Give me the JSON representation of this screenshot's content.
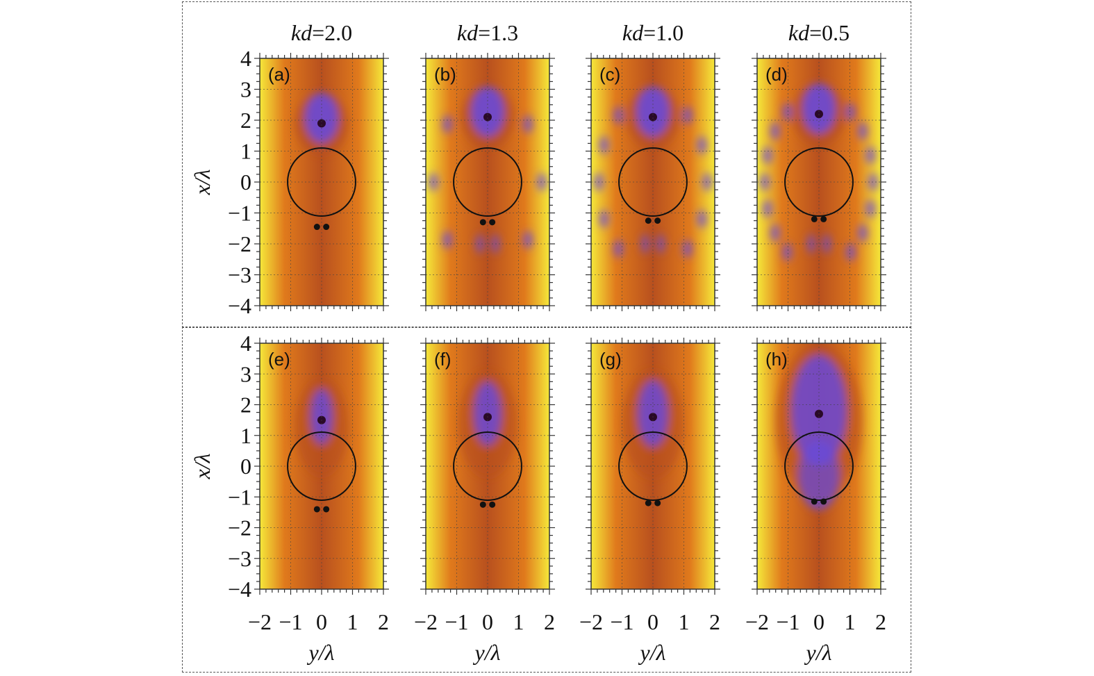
{
  "figure": {
    "column_titles": [
      {
        "italic": "kd",
        "rest": "=2.0"
      },
      {
        "italic": "kd",
        "rest": "=1.3"
      },
      {
        "italic": "kd",
        "rest": "=1.0"
      },
      {
        "italic": "kd",
        "rest": "=0.5"
      }
    ],
    "ylabel": "x/λ",
    "xlabel": "y/λ",
    "y_ticks": [
      "4",
      "3",
      "2",
      "1",
      "0",
      "−1",
      "−2",
      "−3",
      "−4"
    ],
    "x_ticks": [
      "−2",
      "−1",
      "0",
      "1",
      "2"
    ]
  },
  "colors": {
    "low": "#2a0a28",
    "mid_low": "#6a4ad8",
    "mid": "#b8501e",
    "mid_high": "#e07a1c",
    "high": "#f5e83a",
    "circle": "#111111",
    "grid": "#444444"
  },
  "chart_data": {
    "type": "heatmap",
    "x_axis": {
      "label": "y/λ",
      "range": [
        -2,
        2
      ],
      "ticks": [
        -2,
        -1,
        0,
        1,
        2
      ]
    },
    "y_axis": {
      "label": "x/λ",
      "range": [
        -4,
        4
      ],
      "ticks": [
        4,
        3,
        2,
        1,
        0,
        -1,
        -2,
        -3,
        -4
      ]
    },
    "grid": true,
    "scatterer": {
      "shape": "circle",
      "center": [
        0,
        0
      ],
      "radius": 1.1
    },
    "panels": [
      {
        "label": "(a)",
        "row": 0,
        "col": 0,
        "kd": 2.0,
        "sources": [
          [
            -0.15,
            -1.45
          ],
          [
            0.15,
            -1.45
          ]
        ],
        "focus": [
          0,
          1.9
        ],
        "pattern": "top"
      },
      {
        "label": "(b)",
        "row": 0,
        "col": 1,
        "kd": 1.3,
        "sources": [
          [
            -0.15,
            -1.3
          ],
          [
            0.15,
            -1.3
          ]
        ],
        "focus": [
          0,
          2.1
        ],
        "pattern": "top"
      },
      {
        "label": "(c)",
        "row": 0,
        "col": 2,
        "kd": 1.0,
        "sources": [
          [
            -0.15,
            -1.25
          ],
          [
            0.15,
            -1.25
          ]
        ],
        "focus": [
          0,
          2.1
        ],
        "pattern": "top"
      },
      {
        "label": "(d)",
        "row": 0,
        "col": 3,
        "kd": 0.5,
        "sources": [
          [
            -0.15,
            -1.2
          ],
          [
            0.15,
            -1.2
          ]
        ],
        "focus": [
          0,
          2.2
        ],
        "pattern": "top"
      },
      {
        "label": "(e)",
        "row": 1,
        "col": 0,
        "kd": 2.0,
        "sources": [
          [
            -0.15,
            -1.4
          ],
          [
            0.15,
            -1.4
          ]
        ],
        "focus": [
          0,
          1.5
        ],
        "pattern": "bottom"
      },
      {
        "label": "(f)",
        "row": 1,
        "col": 1,
        "kd": 1.3,
        "sources": [
          [
            -0.15,
            -1.25
          ],
          [
            0.15,
            -1.25
          ]
        ],
        "focus": [
          0,
          1.6
        ],
        "pattern": "bottom"
      },
      {
        "label": "(g)",
        "row": 1,
        "col": 2,
        "kd": 1.0,
        "sources": [
          [
            -0.15,
            -1.2
          ],
          [
            0.15,
            -1.2
          ]
        ],
        "focus": [
          0,
          1.6
        ],
        "pattern": "bottom"
      },
      {
        "label": "(h)",
        "row": 1,
        "col": 3,
        "kd": 0.5,
        "sources": [
          [
            -0.15,
            -1.15
          ],
          [
            0.15,
            -1.15
          ]
        ],
        "focus": [
          0,
          1.7
        ],
        "pattern": "bottom"
      }
    ]
  }
}
